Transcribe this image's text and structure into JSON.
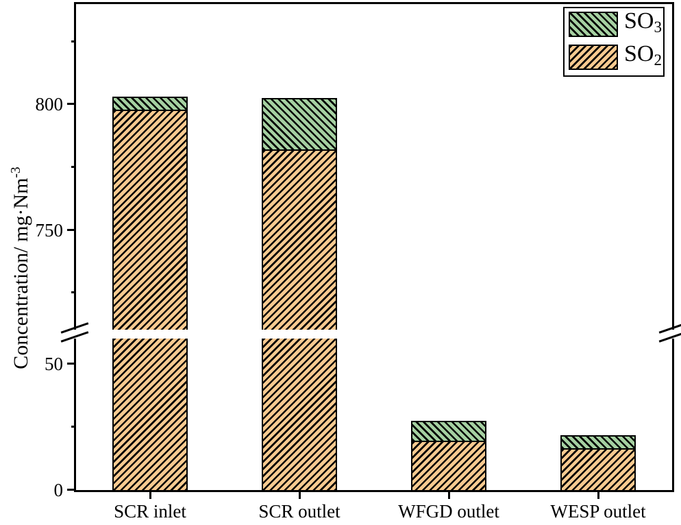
{
  "chart_data": {
    "type": "bar",
    "stacked": true,
    "orientation": "vertical",
    "categories": [
      "SCR inlet",
      "SCR outlet",
      "WFGD outlet",
      "WESP outlet"
    ],
    "series": [
      {
        "name": "SO2",
        "label_main": "SO",
        "label_sub": "2",
        "values": [
          798,
          782,
          19.5,
          16.5
        ],
        "fill": "#f9ca90",
        "hatch_direction": "/",
        "hatch_color": "#000000"
      },
      {
        "name": "SO3",
        "label_main": "SO",
        "label_sub": "3",
        "values": [
          5,
          20.5,
          8,
          5.3
        ],
        "fill": "#a5d0a1",
        "hatch_direction": "\\",
        "hatch_color": "#000000"
      }
    ],
    "totals": [
      803,
      802.5,
      27.5,
      21.8
    ],
    "ylabel": "Concentration/ mg·Nm⁻³",
    "ylabel_main": "Concentration/ mg·Nm",
    "ylabel_sup": "-3",
    "xlabel": "",
    "y_axis": {
      "broken": true,
      "segments": [
        {
          "range": [
            0,
            60
          ],
          "major_ticks": [
            0,
            50
          ],
          "minor_ticks": [
            25
          ]
        },
        {
          "range": [
            710,
            840
          ],
          "major_ticks": [
            750,
            800
          ],
          "minor_ticks": [
            725,
            775,
            825
          ]
        }
      ],
      "break_between": [
        60,
        710
      ],
      "tick_labels": {
        "0": "0",
        "50": "50",
        "750": "750",
        "800": "800"
      }
    },
    "legend": {
      "position": "top-right",
      "order": [
        "SO3",
        "SO2"
      ],
      "border": true
    },
    "grid": false,
    "axis_color": "#000000",
    "background": "#ffffff"
  }
}
